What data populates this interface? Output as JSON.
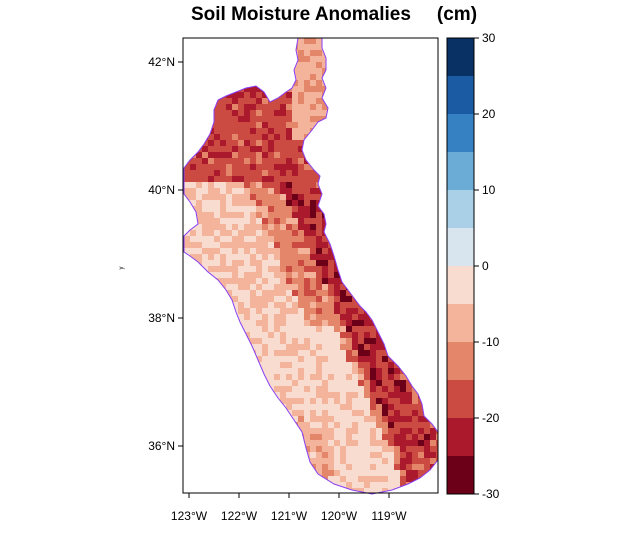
{
  "title": "Soil Moisture Anomalies",
  "units": "(cm)",
  "y_axis_label": "y",
  "lat_ticks": [
    "42°N",
    "40°N",
    "38°N",
    "36°N"
  ],
  "lon_ticks": [
    "123°W",
    "122°W",
    "121°W",
    "120°W",
    "119°W"
  ],
  "colorbar": {
    "tick_labels": [
      "30",
      "20",
      "10",
      "0",
      "-10",
      "-20",
      "-30"
    ],
    "bins": [
      {
        "range": [
          25,
          30
        ],
        "color": "#0a3163"
      },
      {
        "range": [
          20,
          25
        ],
        "color": "#1b5ba3"
      },
      {
        "range": [
          15,
          20
        ],
        "color": "#3581c1"
      },
      {
        "range": [
          10,
          15
        ],
        "color": "#6aacd6"
      },
      {
        "range": [
          5,
          10
        ],
        "color": "#a9d0e6"
      },
      {
        "range": [
          0,
          5
        ],
        "color": "#d8e5ef"
      },
      {
        "range": [
          -5,
          0
        ],
        "color": "#f8dccf"
      },
      {
        "range": [
          -10,
          -5
        ],
        "color": "#f3b49b"
      },
      {
        "range": [
          -15,
          -10
        ],
        "color": "#e3866a"
      },
      {
        "range": [
          -20,
          -15
        ],
        "color": "#cb4a42"
      },
      {
        "range": [
          -25,
          -20
        ],
        "color": "#ab1a2c"
      },
      {
        "range": [
          -30,
          -25
        ],
        "color": "#6b0018"
      }
    ]
  },
  "boundary_color": "#8a3ff5"
}
